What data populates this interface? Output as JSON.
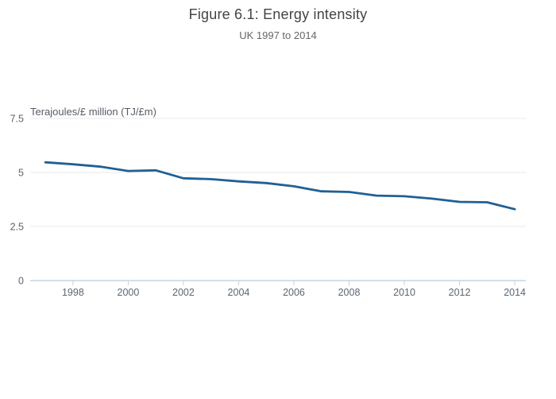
{
  "page": {
    "title": "Figure 6.1: Energy intensity",
    "subtitle": "UK 1997 to 2014"
  },
  "chart_data": {
    "type": "line",
    "title": "Figure 6.1: Energy intensity",
    "subtitle": "UK 1997 to 2014",
    "xlabel": "",
    "ylabel": "Terajoules/£ million (TJ/£m)",
    "x": [
      1997,
      1998,
      1999,
      2000,
      2001,
      2002,
      2003,
      2004,
      2005,
      2006,
      2007,
      2008,
      2009,
      2010,
      2011,
      2012,
      2013,
      2014
    ],
    "series": [
      {
        "name": "Energy intensity",
        "values": [
          5.47,
          5.38,
          5.27,
          5.07,
          5.1,
          4.73,
          4.69,
          4.59,
          4.51,
          4.36,
          4.13,
          4.1,
          3.93,
          3.9,
          3.79,
          3.64,
          3.62,
          3.3
        ]
      }
    ],
    "xlim": [
      1996.45,
      2014.4
    ],
    "ylim": [
      0,
      7.5
    ],
    "yticks": [
      0,
      2.5,
      5,
      7.5
    ],
    "ytick_labels": [
      "0",
      "2.5",
      "5",
      "7.5"
    ],
    "xticks": [
      1998,
      2000,
      2002,
      2004,
      2006,
      2008,
      2010,
      2012,
      2014
    ],
    "grid": true,
    "legend": false,
    "colors": {
      "line": "#206095",
      "gridline": "#e8e8e8",
      "zeroline": "#c8d4e0",
      "tick": "#c7d0dc",
      "tick_label": "#5a6673",
      "title": "#444444",
      "subtitle": "#666666",
      "axis_title": "#555c66",
      "background": "#ffffff"
    }
  }
}
